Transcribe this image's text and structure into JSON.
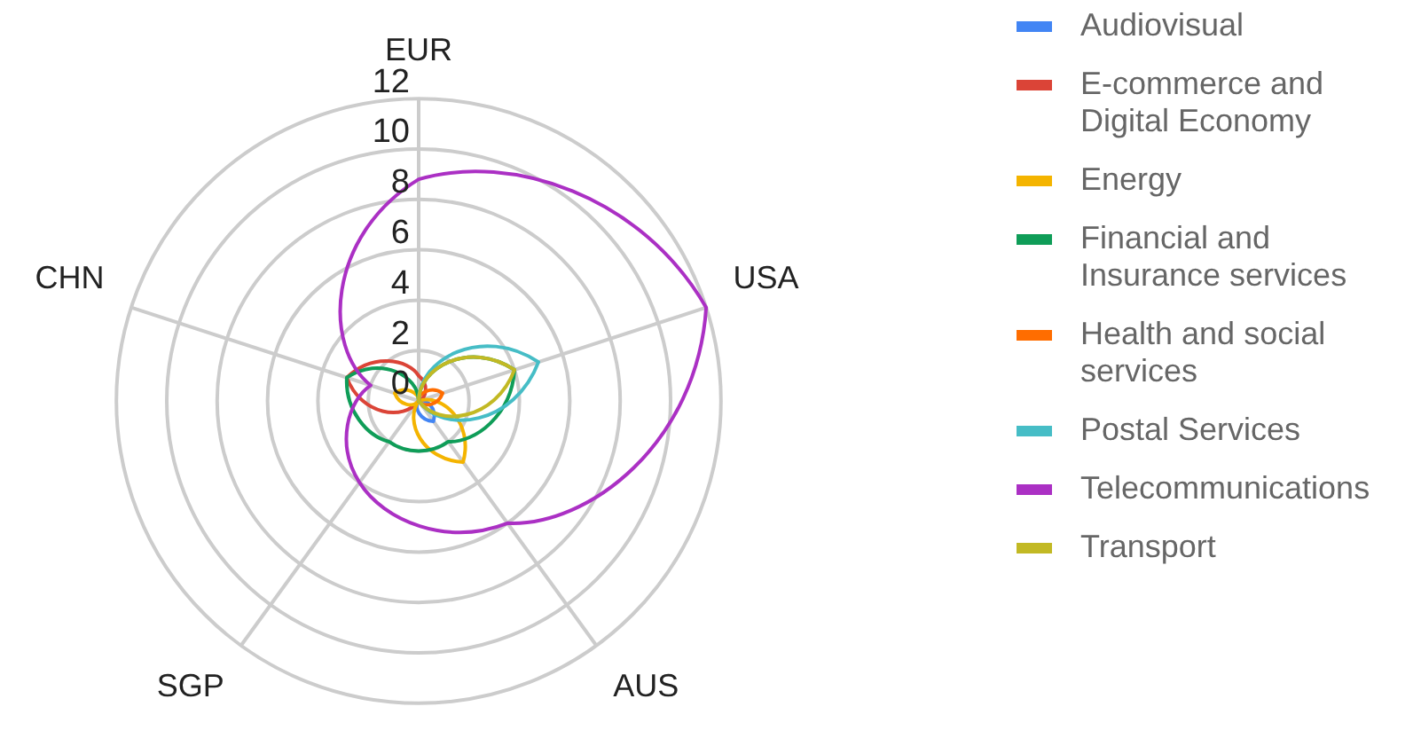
{
  "chart_data": {
    "type": "radar",
    "categories": [
      "EUR",
      "USA",
      "AUS",
      "SGP",
      "CHN"
    ],
    "ylim": [
      0,
      12
    ],
    "yticks": [
      0,
      2,
      4,
      6,
      8,
      10,
      12
    ],
    "grid": true,
    "legend": "right",
    "marker": "none",
    "series": [
      {
        "name": "Audiovisual",
        "color": "#4285f4",
        "values": [
          0,
          0,
          1,
          0,
          0
        ]
      },
      {
        "name": "E-commerce and Digital Economy",
        "color": "#db4437",
        "values": [
          1,
          0,
          0,
          0,
          3
        ]
      },
      {
        "name": "Energy",
        "color": "#f4b400",
        "values": [
          0,
          0,
          3,
          0,
          1
        ]
      },
      {
        "name": "Financial and Insurance services",
        "color": "#0f9d58",
        "values": [
          0,
          4,
          2,
          2,
          3
        ]
      },
      {
        "name": "Health and social services",
        "color": "#ff6d00",
        "values": [
          0,
          1,
          0,
          0,
          0
        ]
      },
      {
        "name": "Postal Services",
        "color": "#46bdc6",
        "values": [
          0,
          5,
          0,
          0,
          0
        ]
      },
      {
        "name": "Telecommunications",
        "color": "#ab30c4",
        "values": [
          8.8,
          12,
          6,
          4,
          2
        ]
      },
      {
        "name": "Transport",
        "color": "#c2b924",
        "values": [
          0,
          4,
          0,
          0,
          0
        ]
      }
    ]
  }
}
